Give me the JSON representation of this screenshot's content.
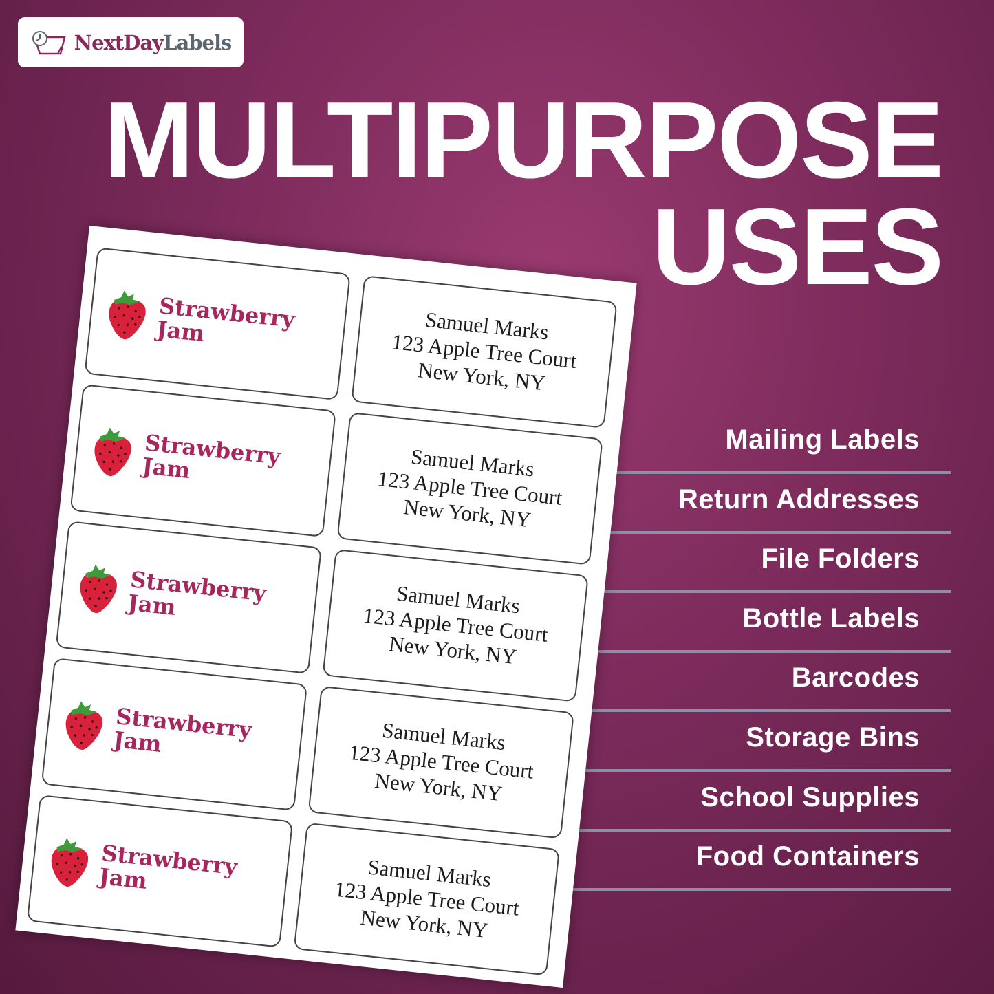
{
  "brand": {
    "logo_part1": "NextDay",
    "logo_part2": "Labels",
    "logo_icon": "label-clock-icon",
    "primary_color": "#8a2a5c",
    "secondary_color": "#5b6670"
  },
  "headline": {
    "line1": "MULTIPURPOSE",
    "line2": "USES"
  },
  "uses": [
    "Mailing Labels",
    "Return Addresses",
    "File Folders",
    "Bottle Labels",
    "Barcodes",
    "Storage Bins",
    "School Supplies",
    "Food Containers"
  ],
  "sheet": {
    "product_label": {
      "line1": "Strawberry",
      "line2": "Jam",
      "icon": "strawberry-icon",
      "color": "#a8265e"
    },
    "address_label": {
      "name": "Samuel Marks",
      "street": "123 Apple Tree Court",
      "city": "New York, NY"
    }
  },
  "background_color": "#7a2a5a"
}
